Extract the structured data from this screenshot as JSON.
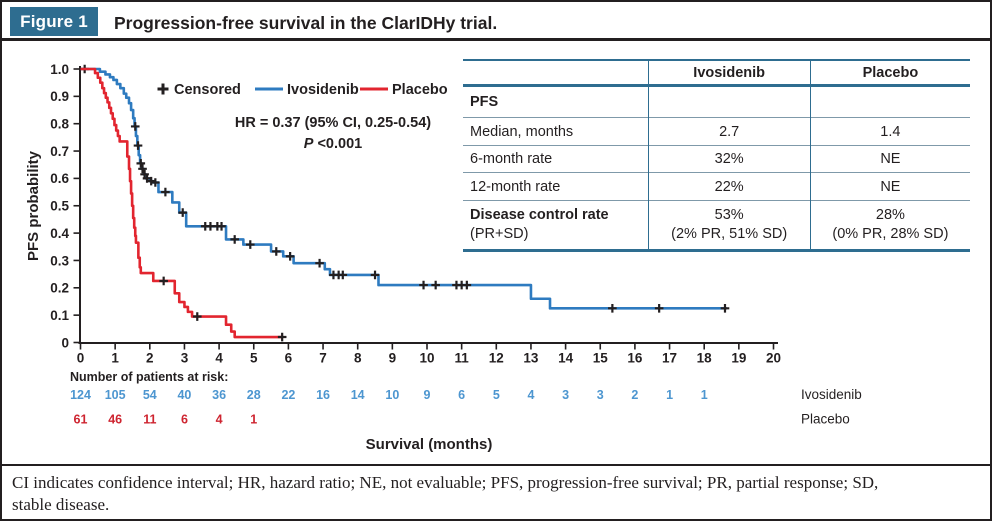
{
  "header": {
    "badge": "Figure 1",
    "title": "Progression-free survival in the ClarIDHy trial."
  },
  "colors": {
    "teal": "#2e6d90",
    "black": "#231f20",
    "ivosidenib_line": "#2e7bc0",
    "placebo_line": "#e2252f",
    "ivosidenib_text": "#4d96d0",
    "placebo_text": "#ce2430"
  },
  "chart_data": {
    "type": "line",
    "subtype": "kaplan-meier-step",
    "xlabel": "Survival (months)",
    "ylabel": "PFS probability",
    "xlim": [
      0,
      20
    ],
    "ylim": [
      0,
      1.0
    ],
    "x_ticks": [
      0,
      1,
      2,
      3,
      4,
      5,
      6,
      7,
      8,
      9,
      10,
      11,
      12,
      13,
      14,
      15,
      16,
      17,
      18,
      19,
      20
    ],
    "y_tick_labels": [
      "1.0",
      "0.9",
      "0.8",
      "0.7",
      "0.6",
      "0.5",
      "0.4",
      "0.3",
      "0.2",
      "0.1",
      "0"
    ],
    "grid": false,
    "legend_position": "top-inside",
    "legend": [
      {
        "label": "Censored",
        "marker": "plus",
        "color": "#231f20"
      },
      {
        "label": "Ivosidenib",
        "marker": "line",
        "color": "#2e7bc0"
      },
      {
        "label": "Placebo",
        "marker": "line",
        "color": "#e2252f"
      }
    ],
    "annotation": {
      "hr_line": "HR = 0.37 (95% CI, 0.25-0.54)",
      "p_italic": "P",
      "p_rest": " <0.001"
    },
    "series": [
      {
        "name": "Ivosidenib",
        "color": "#2e7bc0",
        "end": 18.65,
        "steps": [
          [
            0,
            1.0
          ],
          [
            0.56,
            0.99
          ],
          [
            0.72,
            0.98
          ],
          [
            0.85,
            0.97
          ],
          [
            0.95,
            0.96
          ],
          [
            1.05,
            0.945
          ],
          [
            1.15,
            0.93
          ],
          [
            1.25,
            0.91
          ],
          [
            1.32,
            0.895
          ],
          [
            1.4,
            0.875
          ],
          [
            1.46,
            0.85
          ],
          [
            1.52,
            0.82
          ],
          [
            1.56,
            0.79
          ],
          [
            1.6,
            0.755
          ],
          [
            1.64,
            0.72
          ],
          [
            1.68,
            0.685
          ],
          [
            1.72,
            0.655
          ],
          [
            1.76,
            0.635
          ],
          [
            1.82,
            0.615
          ],
          [
            1.88,
            0.6
          ],
          [
            2.0,
            0.59
          ],
          [
            2.1,
            0.585
          ],
          [
            2.25,
            0.55
          ],
          [
            2.65,
            0.512
          ],
          [
            2.85,
            0.475
          ],
          [
            3.05,
            0.425
          ],
          [
            4.2,
            0.377
          ],
          [
            4.7,
            0.358
          ],
          [
            5.5,
            0.333
          ],
          [
            5.85,
            0.315
          ],
          [
            6.15,
            0.29
          ],
          [
            7.05,
            0.268
          ],
          [
            7.2,
            0.247
          ],
          [
            8.6,
            0.21
          ],
          [
            13.0,
            0.16
          ],
          [
            13.55,
            0.125
          ]
        ],
        "censors": [
          [
            0.12,
            1.0
          ],
          [
            1.58,
            0.79
          ],
          [
            1.66,
            0.72
          ],
          [
            1.74,
            0.655
          ],
          [
            1.79,
            0.635
          ],
          [
            1.85,
            0.615
          ],
          [
            1.92,
            0.6
          ],
          [
            2.04,
            0.59
          ],
          [
            2.16,
            0.585
          ],
          [
            2.45,
            0.55
          ],
          [
            2.95,
            0.475
          ],
          [
            3.6,
            0.425
          ],
          [
            3.75,
            0.425
          ],
          [
            3.95,
            0.425
          ],
          [
            4.07,
            0.425
          ],
          [
            4.45,
            0.377
          ],
          [
            4.9,
            0.358
          ],
          [
            5.65,
            0.333
          ],
          [
            6.05,
            0.315
          ],
          [
            6.9,
            0.29
          ],
          [
            7.3,
            0.247
          ],
          [
            7.45,
            0.247
          ],
          [
            7.57,
            0.247
          ],
          [
            8.5,
            0.247
          ],
          [
            9.9,
            0.21
          ],
          [
            10.25,
            0.21
          ],
          [
            10.85,
            0.21
          ],
          [
            11.0,
            0.21
          ],
          [
            11.15,
            0.21
          ],
          [
            15.35,
            0.125
          ],
          [
            16.7,
            0.125
          ],
          [
            18.6,
            0.125
          ]
        ]
      },
      {
        "name": "Placebo",
        "color": "#e2252f",
        "end": 5.85,
        "steps": [
          [
            0,
            1.0
          ],
          [
            0.42,
            0.985
          ],
          [
            0.5,
            0.968
          ],
          [
            0.57,
            0.95
          ],
          [
            0.63,
            0.93
          ],
          [
            0.68,
            0.912
          ],
          [
            0.73,
            0.895
          ],
          [
            0.78,
            0.878
          ],
          [
            0.83,
            0.858
          ],
          [
            0.88,
            0.838
          ],
          [
            0.93,
            0.818
          ],
          [
            0.98,
            0.795
          ],
          [
            1.03,
            0.775
          ],
          [
            1.08,
            0.755
          ],
          [
            1.13,
            0.735
          ],
          [
            1.35,
            0.68
          ],
          [
            1.4,
            0.635
          ],
          [
            1.43,
            0.59
          ],
          [
            1.46,
            0.545
          ],
          [
            1.49,
            0.5
          ],
          [
            1.52,
            0.455
          ],
          [
            1.55,
            0.42
          ],
          [
            1.58,
            0.39
          ],
          [
            1.6,
            0.365
          ],
          [
            1.67,
            0.31
          ],
          [
            1.71,
            0.275
          ],
          [
            1.74,
            0.254
          ],
          [
            2.1,
            0.225
          ],
          [
            2.72,
            0.18
          ],
          [
            2.85,
            0.148
          ],
          [
            3.0,
            0.13
          ],
          [
            3.1,
            0.112
          ],
          [
            3.22,
            0.095
          ],
          [
            4.2,
            0.065
          ],
          [
            4.35,
            0.04
          ],
          [
            4.45,
            0.02
          ]
        ],
        "censors": [
          [
            2.4,
            0.225
          ],
          [
            3.37,
            0.095
          ],
          [
            5.82,
            0.02
          ]
        ]
      }
    ],
    "at_risk": {
      "label": "Number of patients at risk:",
      "rows": [
        {
          "name": "Ivosidenib",
          "text_color": "#4d96d0",
          "values": [
            "124",
            "105",
            "54",
            "40",
            "36",
            "28",
            "22",
            "16",
            "14",
            "10",
            "9",
            "6",
            "5",
            "4",
            "3",
            "3",
            "2",
            "1",
            "1"
          ]
        },
        {
          "name": "Placebo",
          "text_color": "#ce2430",
          "values": [
            "61",
            "46",
            "11",
            "6",
            "4",
            "1"
          ]
        }
      ]
    }
  },
  "table": {
    "col_headers": [
      "",
      "Ivosidenib",
      "Placebo"
    ],
    "rows": [
      {
        "label": "PFS",
        "ivosidenib": "",
        "placebo": ""
      },
      {
        "label": "Median, months",
        "ivosidenib": "2.7",
        "placebo": "1.4"
      },
      {
        "label": "6-month rate",
        "ivosidenib": "32%",
        "placebo": "NE"
      },
      {
        "label": "12-month rate",
        "ivosidenib": "22%",
        "placebo": "NE"
      },
      {
        "label": "Disease control rate",
        "label2": "(PR+SD)",
        "ivosidenib": "53%",
        "ivosidenib2": "(2% PR, 51% SD)",
        "placebo": "28%",
        "placebo2": "(0% PR, 28% SD)"
      }
    ]
  },
  "footer": {
    "line1": "CI indicates confidence interval; HR, hazard ratio; NE, not evaluable; PFS, progression-free survival; PR, partial response; SD,",
    "line2": "stable disease."
  }
}
